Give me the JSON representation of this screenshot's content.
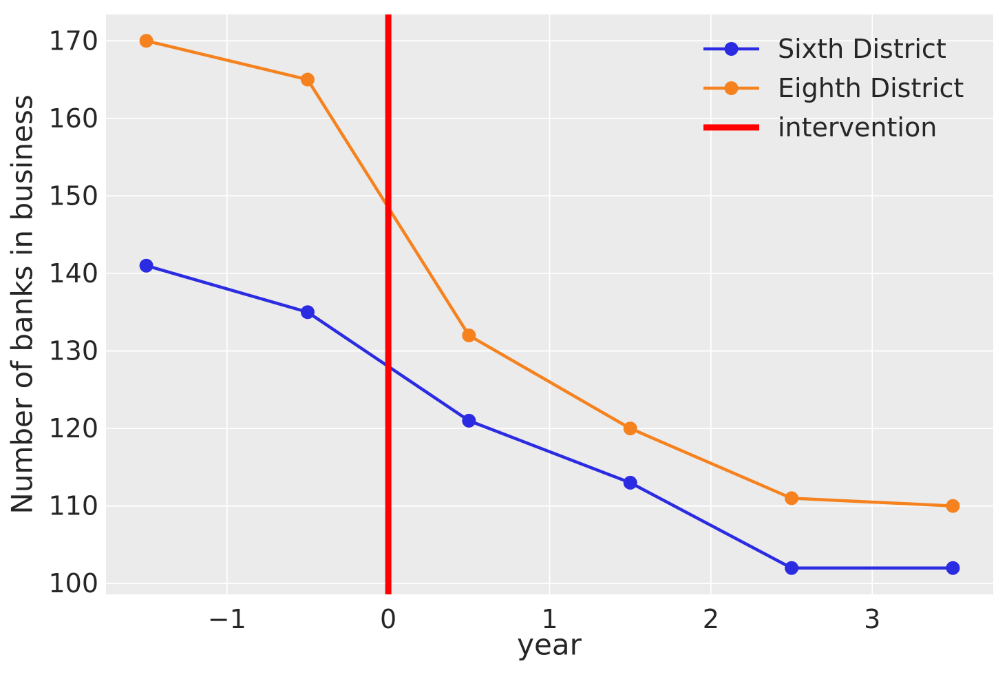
{
  "chart_data": {
    "type": "line",
    "title": "",
    "xlabel": "year",
    "ylabel": "Number of banks in business",
    "x": [
      -1.5,
      -0.5,
      0.5,
      1.5,
      2.5,
      3.5
    ],
    "series": [
      {
        "name": "Sixth District",
        "color": "#2b2be2",
        "values": [
          141,
          135,
          121,
          113,
          102,
          102
        ]
      },
      {
        "name": "Eighth District",
        "color": "#f5821f",
        "values": [
          170,
          165,
          132,
          120,
          111,
          110
        ]
      }
    ],
    "intervention": {
      "label": "intervention",
      "x": 0,
      "color": "#ff0000"
    },
    "xlim": [
      -1.75,
      3.75
    ],
    "ylim": [
      98.6,
      173.4
    ],
    "xticks": [
      -1,
      0,
      1,
      2,
      3
    ],
    "xtick_labels": [
      "−1",
      "0",
      "1",
      "2",
      "3"
    ],
    "yticks": [
      100,
      110,
      120,
      130,
      140,
      150,
      160,
      170
    ],
    "ytick_labels": [
      "100",
      "110",
      "120",
      "130",
      "140",
      "150",
      "160",
      "170"
    ],
    "grid": true,
    "legend_position": "upper right",
    "style": {
      "figure_bg": "#ffffff",
      "plot_bg": "#ebebeb",
      "grid_color": "#ffffff",
      "text_color": "#262626"
    }
  }
}
